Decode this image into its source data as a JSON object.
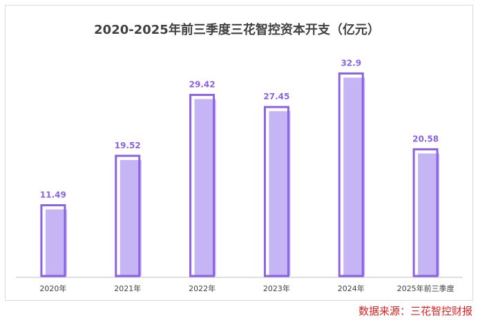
{
  "chart_data": {
    "type": "bar",
    "title": "2020-2025年前三季度三花智控资本开支（亿元）",
    "categories": [
      "2020年",
      "2021年",
      "2022年",
      "2023年",
      "2024年",
      "2025年前三季度"
    ],
    "values": [
      11.49,
      19.52,
      29.42,
      27.45,
      32.9,
      20.58
    ],
    "value_labels": [
      "11.49",
      "19.52",
      "29.42",
      "27.45",
      "32.9",
      "20.58"
    ],
    "ylim": [
      0,
      35
    ],
    "grid": false,
    "legend": "none",
    "colors": {
      "bar_fill": "#c5b5f5",
      "bar_outline": "#8b62e6",
      "label": "#8b62e6",
      "axis": "#bfbfbf"
    }
  },
  "source_note": "数据来源：三花智控财报"
}
